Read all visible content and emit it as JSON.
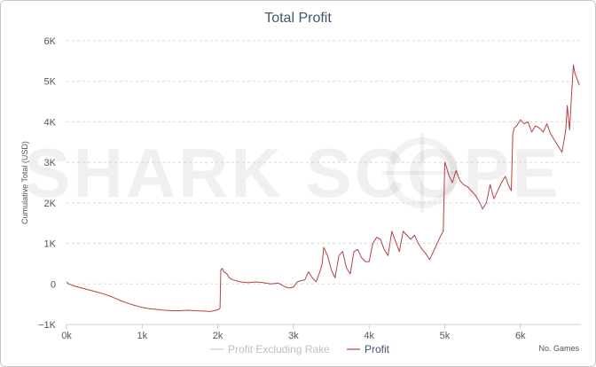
{
  "chart_data": {
    "type": "line",
    "title": "Total Profit",
    "ylabel": "Cumulative Total (USD)",
    "xlabel": "No. Games",
    "xlim": [
      0,
      6800
    ],
    "ylim": [
      -1000,
      6000
    ],
    "x_ticks": [
      0,
      1000,
      2000,
      3000,
      4000,
      5000,
      6000
    ],
    "x_tick_labels": [
      "0k",
      "1k",
      "2k",
      "3k",
      "4k",
      "5k",
      "6k"
    ],
    "y_ticks": [
      -1000,
      0,
      1000,
      2000,
      3000,
      4000,
      5000,
      6000
    ],
    "y_tick_labels": [
      "−1K",
      "0",
      "1K",
      "2K",
      "3K",
      "4K",
      "5K",
      "6K"
    ],
    "grid": "horizontal dashed",
    "legend": {
      "placement": "bottom-center",
      "items": [
        "Profit Excluding Rake",
        "Profit"
      ]
    },
    "watermark": "SHARK SCOPE",
    "colors": {
      "profit": "#b5413f",
      "profit_excluding_rake": "#c8c8c8",
      "title": "#3e576f",
      "axis_text": "#555555"
    },
    "series": [
      {
        "name": "Profit",
        "x": [
          0,
          30,
          100,
          200,
          300,
          400,
          500,
          600,
          700,
          800,
          900,
          1000,
          1100,
          1200,
          1300,
          1400,
          1500,
          1600,
          1700,
          1800,
          1900,
          1950,
          2000,
          2030,
          2040,
          2060,
          2080,
          2120,
          2150,
          2200,
          2300,
          2400,
          2500,
          2600,
          2700,
          2800,
          2900,
          2950,
          3000,
          3050,
          3100,
          3150,
          3200,
          3250,
          3300,
          3350,
          3380,
          3400,
          3450,
          3500,
          3550,
          3600,
          3650,
          3700,
          3750,
          3800,
          3850,
          3900,
          3950,
          4000,
          4050,
          4100,
          4150,
          4200,
          4250,
          4300,
          4350,
          4400,
          4450,
          4500,
          4550,
          4600,
          4650,
          4700,
          4750,
          4800,
          4850,
          4900,
          4950,
          4980,
          5000,
          5020,
          5050,
          5100,
          5150,
          5200,
          5250,
          5300,
          5350,
          5400,
          5450,
          5500,
          5550,
          5600,
          5650,
          5700,
          5750,
          5800,
          5850,
          5880,
          5900,
          5920,
          5950,
          6000,
          6050,
          6100,
          6150,
          6200,
          6250,
          6300,
          6350,
          6400,
          6450,
          6500,
          6550,
          6600,
          6620,
          6650,
          6680,
          6700,
          6720,
          6740,
          6760,
          6780
        ],
        "values": [
          50,
          0,
          -50,
          -100,
          -150,
          -200,
          -250,
          -320,
          -400,
          -470,
          -530,
          -580,
          -610,
          -630,
          -650,
          -660,
          -660,
          -650,
          -660,
          -670,
          -680,
          -660,
          -640,
          -600,
          350,
          380,
          300,
          250,
          150,
          100,
          50,
          30,
          50,
          30,
          0,
          20,
          -80,
          -100,
          -80,
          50,
          80,
          100,
          300,
          150,
          50,
          300,
          500,
          900,
          700,
          350,
          150,
          700,
          800,
          400,
          250,
          800,
          850,
          650,
          550,
          550,
          1000,
          1150,
          1100,
          850,
          700,
          1300,
          1050,
          800,
          1300,
          1200,
          1100,
          1200,
          1000,
          850,
          750,
          600,
          800,
          1000,
          1200,
          1300,
          3000,
          2900,
          2700,
          2500,
          2800,
          2550,
          2450,
          2400,
          2300,
          2200,
          2050,
          1850,
          2000,
          2450,
          2100,
          2300,
          2500,
          2650,
          2400,
          2300,
          3700,
          3850,
          3900,
          4050,
          3950,
          4000,
          3750,
          3900,
          3850,
          3750,
          3950,
          3700,
          3550,
          3400,
          3250,
          3800,
          4400,
          3800,
          4800,
          5400,
          5200,
          5100,
          5000,
          4900
        ]
      }
    ]
  }
}
